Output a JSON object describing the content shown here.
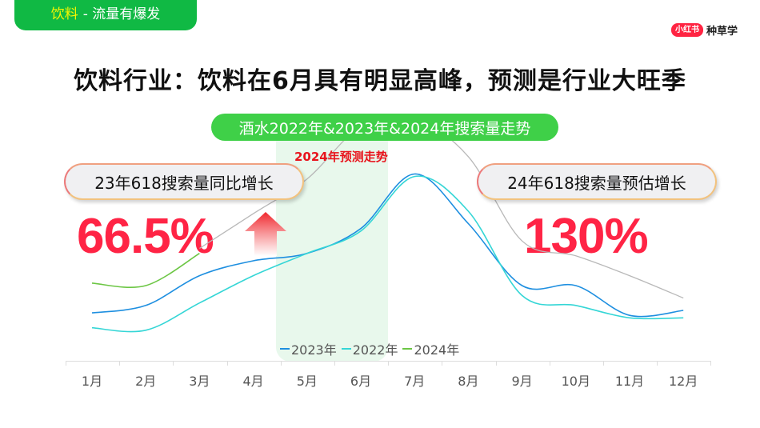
{
  "header": {
    "tag_highlight": "饮料",
    "tag_rest": "- 流量有爆发",
    "brand_logo": "小红书",
    "brand_text": "种草学",
    "title": "饮料行业：饮料在6月具有明显高峰，预测是行业大旺季"
  },
  "annotations": {
    "chart_pill": "酒水2022年&2023年&2024年搜索量走势",
    "forecast_label": "2024年预测走势",
    "left_callout": "23年618搜索量同比增长",
    "left_value": "66.5%",
    "right_callout": "24年618搜索量预估增长",
    "right_value": "130%"
  },
  "colors": {
    "tag_green": "#10b944",
    "pill_green": "#3fd048",
    "accent_red": "#ff2445",
    "forecast_red": "#e8141c",
    "shade": "#e8f8ec"
  },
  "chart_data": {
    "type": "line",
    "title": "酒水2022年&2023年&2024年搜索量走势",
    "xlabel": "",
    "ylabel": "",
    "categories": [
      "1月",
      "2月",
      "3月",
      "4月",
      "5月",
      "6月",
      "7月",
      "8月",
      "9月",
      "10月",
      "11月",
      "12月"
    ],
    "ylim": [
      0,
      100
    ],
    "grid": false,
    "legend_position": "bottom",
    "highlight_band": {
      "from": "5月",
      "to": "6月",
      "label": "2024年预测走势"
    },
    "series": [
      {
        "name": "2023年",
        "color": "#1e8fe0",
        "values": [
          19,
          22,
          34,
          40,
          43,
          53,
          75,
          55,
          30,
          30,
          18,
          20
        ]
      },
      {
        "name": "2022年",
        "color": "#35d6d6",
        "values": [
          13,
          12,
          23,
          34,
          43,
          52,
          74,
          60,
          26,
          22,
          17,
          17
        ]
      },
      {
        "name": "2024年",
        "color": "#6cc644",
        "values": [
          31,
          30,
          43,
          null,
          null,
          null,
          null,
          null,
          null,
          null,
          null,
          null
        ]
      },
      {
        "name": "2024年预测",
        "color": "#b8b8b8",
        "in_legend": false,
        "values": [
          null,
          null,
          45,
          59,
          73,
          94,
          97,
          82,
          48,
          42,
          34,
          25
        ]
      }
    ],
    "annotations": [
      {
        "text": "23年618搜索量同比增长",
        "value": "66.5%"
      },
      {
        "text": "24年618搜索量预估增长",
        "value": "130%"
      }
    ]
  },
  "legend": [
    {
      "label": "2023年",
      "color": "#1e8fe0"
    },
    {
      "label": "2022年",
      "color": "#35d6d6"
    },
    {
      "label": "2024年",
      "color": "#6cc644"
    }
  ]
}
